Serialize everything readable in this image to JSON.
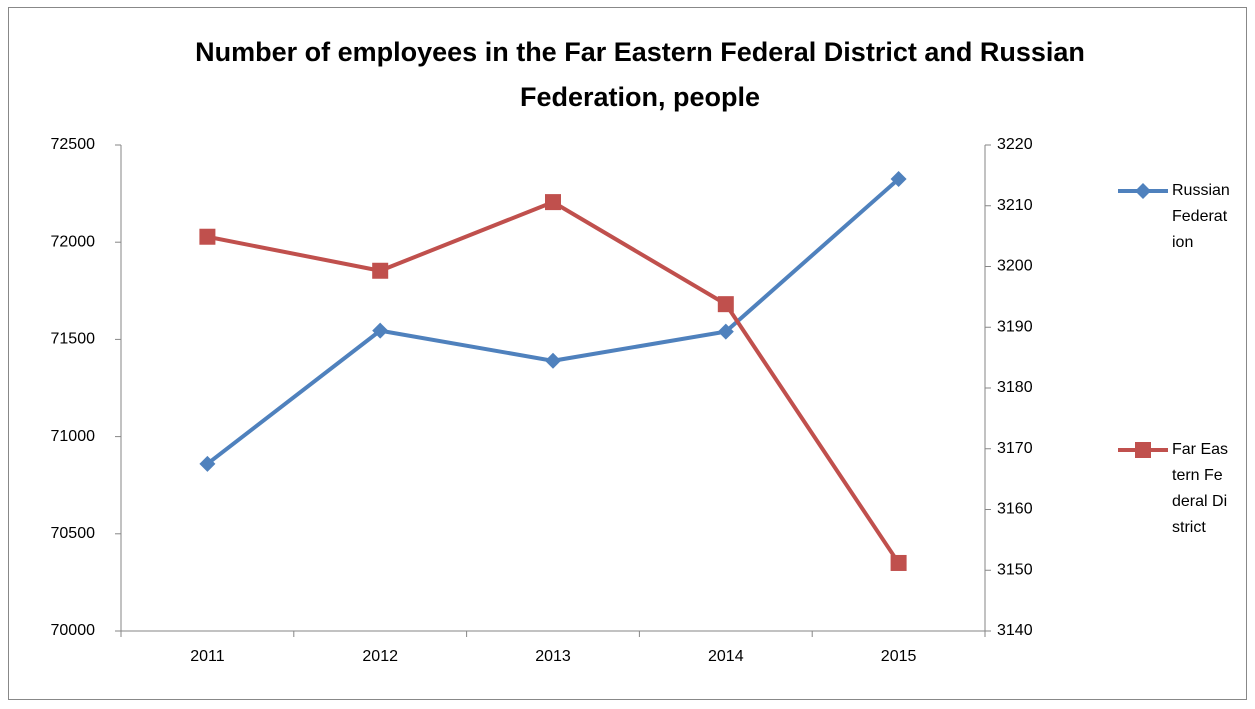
{
  "chart_data": {
    "type": "line",
    "title": "Number of employees in the Far Eastern Federal District and Russian Federation, people",
    "categories": [
      "2011",
      "2012",
      "2013",
      "2014",
      "2015"
    ],
    "series": [
      {
        "name": "Russian Federation",
        "color": "#4f81bd",
        "marker": "diamond",
        "values": [
          70860,
          71545,
          71390,
          71540,
          72325
        ]
      },
      {
        "name": "Far Eastern Federal District",
        "color": "#c0504d",
        "marker": "square",
        "axis": "y2",
        "values": [
          3204.9,
          3199.3,
          3210.6,
          3193.8,
          3151.2
        ]
      }
    ],
    "ylim": [
      70000,
      72500
    ],
    "yticks": [
      70000,
      70500,
      71000,
      71500,
      72000,
      72500
    ],
    "y2lim": [
      3140,
      3220
    ],
    "y2ticks": [
      3140,
      3150,
      3160,
      3170,
      3180,
      3190,
      3200,
      3210,
      3220
    ],
    "legend": "right"
  }
}
